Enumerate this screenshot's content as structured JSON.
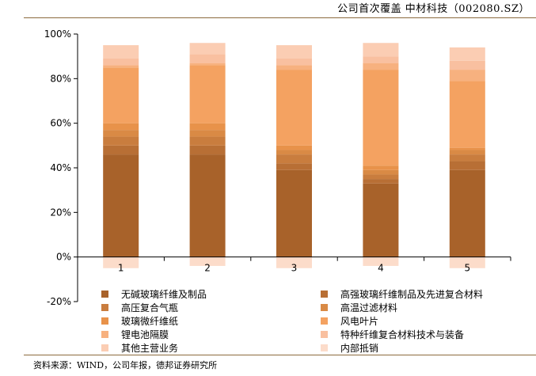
{
  "header": {
    "title": "公司首次覆盖  中材科技（002080.SZ）"
  },
  "footer": {
    "source": "资料来源：WIND，公司年报，德邦证券研究所"
  },
  "chart_data": {
    "type": "bar",
    "stacked": true,
    "categories": [
      "1",
      "2",
      "3",
      "4",
      "5"
    ],
    "ylim": [
      -20,
      100
    ],
    "yticks": [
      "-20%",
      "0%",
      "20%",
      "40%",
      "60%",
      "80%",
      "100%"
    ],
    "ytick_values": [
      -20,
      0,
      20,
      40,
      60,
      80,
      100
    ],
    "legend_position": "bottom",
    "grid": false,
    "series": [
      {
        "name": "无碱玻璃纤维及制品",
        "color": "#a8622a",
        "values": [
          46,
          46,
          39,
          33,
          39
        ]
      },
      {
        "name": "高强玻璃纤维制品及先进复合材料",
        "color": "#b86f35",
        "values": [
          4,
          4,
          3,
          2,
          4
        ]
      },
      {
        "name": "高压复合气瓶",
        "color": "#c97d3e",
        "values": [
          4,
          4,
          4,
          2,
          3
        ]
      },
      {
        "name": "高温过滤材料",
        "color": "#d98a45",
        "values": [
          3,
          3,
          2,
          2,
          2
        ]
      },
      {
        "name": "玻璃微纤维纸",
        "color": "#e8924a",
        "values": [
          3,
          3,
          2,
          2,
          1
        ]
      },
      {
        "name": "风电叶片",
        "color": "#f4a261",
        "values": [
          25,
          26,
          34,
          43,
          30
        ]
      },
      {
        "name": "锂电池隔膜",
        "color": "#f7b17f",
        "values": [
          1,
          1,
          2,
          3,
          5
        ]
      },
      {
        "name": "特种纤维复合材料技术与装备",
        "color": "#f9c0a0",
        "values": [
          3,
          4,
          3,
          3,
          4
        ]
      },
      {
        "name": "其他主营业务",
        "color": "#fbcdb3",
        "values": [
          6,
          5,
          6,
          6,
          6
        ]
      },
      {
        "name": "内部抵销",
        "color": "#fcdcca",
        "values": [
          -5,
          -4,
          -5,
          -4,
          -5
        ]
      }
    ]
  }
}
